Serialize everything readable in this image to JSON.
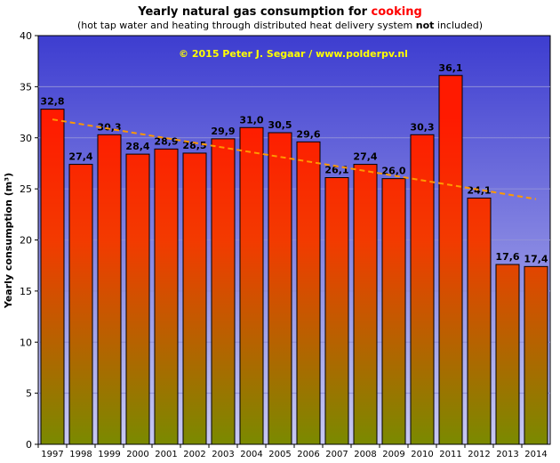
{
  "chart_data": {
    "type": "bar",
    "title": {
      "prefix": "Yearly natural  gas consumption  for ",
      "highlight": "cooking",
      "highlight_color": "#ff0000"
    },
    "subtitle": {
      "before": "(hot tap water and heating through distributed heat delivery system ",
      "bold": "not",
      "after": " included)"
    },
    "watermark": "© 2015 Peter J. Segaar / www.polderpv.nl",
    "watermark_color": "#ffff00",
    "ylabel": "Yearly consumption (m³)",
    "xlabel": "",
    "ylim": [
      0,
      40
    ],
    "yticks": [
      0,
      5,
      10,
      15,
      20,
      25,
      30,
      35,
      40
    ],
    "grid": true,
    "legend": "none",
    "categories": [
      "1997",
      "1998",
      "1999",
      "2000",
      "2001",
      "2002",
      "2003",
      "2004",
      "2005",
      "2006",
      "2007",
      "2008",
      "2009",
      "2010",
      "2011",
      "2012",
      "2013",
      "2014"
    ],
    "values": [
      32.8,
      27.4,
      30.3,
      28.4,
      28.9,
      28.5,
      29.9,
      31.0,
      30.5,
      29.6,
      26.1,
      27.4,
      26.0,
      30.3,
      36.1,
      24.1,
      17.6,
      17.4
    ],
    "data_labels": [
      "32,8",
      "27,4",
      "30,3",
      "28,4",
      "28,9",
      "28,5",
      "29,9",
      "31,0",
      "30,5",
      "29,6",
      "26,1",
      "27,4",
      "26,0",
      "30,3",
      "36,1",
      "24,1",
      "17,6",
      "17,4"
    ],
    "trendline": {
      "start": 31.8,
      "end": 24.0,
      "color": "#ff9900",
      "style": "dashed"
    },
    "colors": {
      "plot_bg_top": "#3d3dd0",
      "plot_bg_bottom": "#c9c9f2",
      "bar_top": "#ff1a00",
      "bar_mid": "#f33a00",
      "bar_bottom": "#7a8a00"
    }
  }
}
